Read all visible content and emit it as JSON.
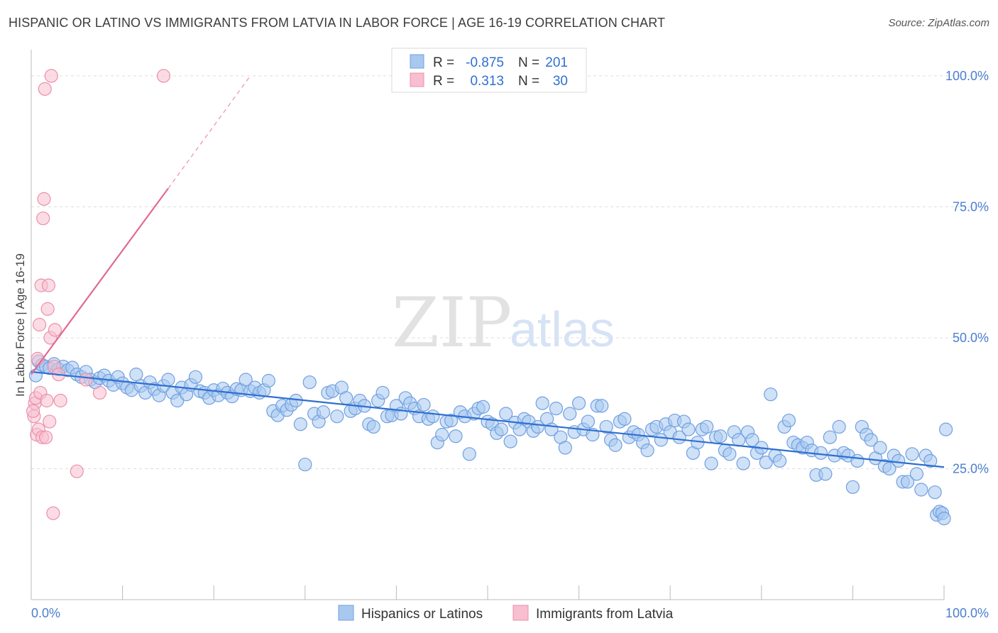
{
  "title": "HISPANIC OR LATINO VS IMMIGRANTS FROM LATVIA IN LABOR FORCE | AGE 16-19 CORRELATION CHART",
  "source": "Source: ZipAtlas.com",
  "watermark": {
    "zip": "ZIP",
    "atlas": "atlas"
  },
  "colors": {
    "blue_fill": "#a8c8f0",
    "blue_stroke": "#6f9fe0",
    "blue_line": "#2f6fd0",
    "pink_fill": "#f7bfd0",
    "pink_stroke": "#ec8fab",
    "pink_line": "#e06a95",
    "grid": "#dddddd",
    "axis_text": "#4a7fd0"
  },
  "stats": {
    "blue": {
      "r_label": "R =",
      "r_value": "-0.875",
      "n_label": "N =",
      "n_value": "201"
    },
    "pink": {
      "r_label": "R =",
      "r_value": "0.313",
      "n_label": "N =",
      "n_value": "30"
    }
  },
  "chart_data": {
    "type": "scatter",
    "xlabel": "",
    "ylabel": "In Labor Force | Age 16-19",
    "xlim": [
      0,
      100
    ],
    "ylim": [
      0,
      105
    ],
    "x_tick_labels": [
      "0.0%",
      "100.0%"
    ],
    "y_ticks": [
      {
        "value": 25,
        "label": "25.0%"
      },
      {
        "value": 50,
        "label": "50.0%"
      },
      {
        "value": 75,
        "label": "75.0%"
      },
      {
        "value": 100,
        "label": "100.0%"
      }
    ],
    "grid": "horizontal dashed",
    "legend_placement": "bottom",
    "series": [
      {
        "name": "Hispanics or Latinos",
        "color": "blue",
        "trend": {
          "x": [
            0,
            100
          ],
          "y": [
            43.5,
            25.3
          ]
        },
        "points": [
          [
            0.5,
            42.8
          ],
          [
            0.8,
            45.5
          ],
          [
            1.2,
            44.8
          ],
          [
            1.6,
            44.5
          ],
          [
            2.0,
            44.2
          ],
          [
            2.5,
            45.0
          ],
          [
            3.0,
            44.0
          ],
          [
            3.5,
            44.5
          ],
          [
            4.0,
            43.8
          ],
          [
            4.5,
            44.3
          ],
          [
            5.0,
            43.0
          ],
          [
            5.5,
            42.5
          ],
          [
            6.0,
            43.5
          ],
          [
            6.5,
            42.0
          ],
          [
            7.0,
            41.5
          ],
          [
            7.5,
            42.3
          ],
          [
            8.0,
            42.8
          ],
          [
            8.5,
            41.8
          ],
          [
            9.0,
            41.0
          ],
          [
            9.5,
            42.5
          ],
          [
            10.0,
            41.3
          ],
          [
            10.5,
            40.5
          ],
          [
            11.0,
            40.0
          ],
          [
            11.5,
            43.0
          ],
          [
            12.0,
            40.8
          ],
          [
            12.5,
            39.5
          ],
          [
            13.0,
            41.5
          ],
          [
            13.5,
            40.2
          ],
          [
            14.0,
            39.0
          ],
          [
            14.5,
            40.8
          ],
          [
            15.0,
            42.0
          ],
          [
            15.5,
            39.5
          ],
          [
            16.0,
            38.0
          ],
          [
            16.5,
            40.5
          ],
          [
            17.0,
            39.2
          ],
          [
            17.5,
            41.0
          ],
          [
            18.0,
            42.5
          ],
          [
            18.5,
            39.8
          ],
          [
            19.0,
            39.5
          ],
          [
            19.5,
            38.5
          ],
          [
            20.0,
            40.0
          ],
          [
            20.5,
            39.0
          ],
          [
            21.0,
            40.3
          ],
          [
            21.5,
            39.5
          ],
          [
            22.0,
            38.8
          ],
          [
            22.5,
            40.2
          ],
          [
            23.0,
            40.0
          ],
          [
            23.5,
            42.0
          ],
          [
            24.0,
            39.8
          ],
          [
            24.5,
            40.5
          ],
          [
            25.0,
            39.5
          ],
          [
            25.5,
            40.0
          ],
          [
            26.0,
            41.8
          ],
          [
            26.5,
            36.0
          ],
          [
            27.0,
            35.2
          ],
          [
            27.5,
            37.0
          ],
          [
            28.0,
            36.2
          ],
          [
            28.5,
            37.2
          ],
          [
            29.0,
            38.0
          ],
          [
            29.5,
            33.5
          ],
          [
            30.0,
            25.8
          ],
          [
            30.5,
            41.5
          ],
          [
            31.0,
            35.5
          ],
          [
            31.5,
            34.0
          ],
          [
            32.0,
            35.8
          ],
          [
            32.5,
            39.5
          ],
          [
            33.0,
            39.8
          ],
          [
            33.5,
            35.0
          ],
          [
            34.0,
            40.5
          ],
          [
            34.5,
            38.5
          ],
          [
            35.0,
            36.0
          ],
          [
            35.5,
            36.5
          ],
          [
            36.0,
            38.0
          ],
          [
            36.5,
            37.0
          ],
          [
            37.0,
            33.5
          ],
          [
            37.5,
            33.0
          ],
          [
            38.0,
            38.0
          ],
          [
            38.5,
            39.5
          ],
          [
            39.0,
            35.0
          ],
          [
            39.5,
            35.2
          ],
          [
            40.0,
            37.0
          ],
          [
            40.5,
            35.5
          ],
          [
            41.0,
            38.5
          ],
          [
            41.5,
            37.5
          ],
          [
            42.0,
            36.5
          ],
          [
            42.5,
            35.0
          ],
          [
            43.0,
            37.2
          ],
          [
            43.5,
            34.5
          ],
          [
            44.0,
            35.0
          ],
          [
            44.5,
            30.0
          ],
          [
            45.0,
            31.5
          ],
          [
            45.5,
            34.0
          ],
          [
            46.0,
            34.2
          ],
          [
            46.5,
            31.2
          ],
          [
            47.0,
            35.8
          ],
          [
            47.5,
            35.0
          ],
          [
            48.0,
            27.8
          ],
          [
            48.5,
            35.5
          ],
          [
            49.0,
            36.5
          ],
          [
            49.5,
            36.8
          ],
          [
            50.0,
            34.0
          ],
          [
            50.5,
            33.5
          ],
          [
            51.0,
            31.8
          ],
          [
            51.5,
            32.5
          ],
          [
            52.0,
            35.5
          ],
          [
            52.5,
            30.2
          ],
          [
            53.0,
            33.8
          ],
          [
            53.5,
            32.5
          ],
          [
            54.0,
            34.5
          ],
          [
            54.5,
            34.0
          ],
          [
            55.0,
            32.2
          ],
          [
            55.5,
            33.0
          ],
          [
            56.0,
            37.5
          ],
          [
            56.5,
            34.5
          ],
          [
            57.0,
            32.5
          ],
          [
            57.5,
            36.5
          ],
          [
            58.0,
            31.0
          ],
          [
            58.5,
            29.0
          ],
          [
            59.0,
            35.5
          ],
          [
            59.5,
            32.0
          ],
          [
            60.0,
            37.5
          ],
          [
            60.5,
            32.5
          ],
          [
            61.0,
            34.0
          ],
          [
            61.5,
            31.5
          ],
          [
            62.0,
            37.0
          ],
          [
            62.5,
            37.0
          ],
          [
            63.0,
            33.0
          ],
          [
            63.5,
            30.5
          ],
          [
            64.0,
            29.5
          ],
          [
            64.5,
            34.0
          ],
          [
            65.0,
            34.5
          ],
          [
            65.5,
            31.0
          ],
          [
            66.0,
            32.0
          ],
          [
            66.5,
            31.5
          ],
          [
            67.0,
            30.0
          ],
          [
            67.5,
            28.5
          ],
          [
            68.0,
            32.5
          ],
          [
            68.5,
            33.0
          ],
          [
            69.0,
            30.5
          ],
          [
            69.5,
            33.5
          ],
          [
            70.0,
            32.0
          ],
          [
            70.5,
            34.2
          ],
          [
            71.0,
            31.0
          ],
          [
            71.5,
            34.0
          ],
          [
            72.0,
            32.5
          ],
          [
            72.5,
            28.0
          ],
          [
            73.0,
            30.0
          ],
          [
            73.5,
            32.5
          ],
          [
            74.0,
            33.0
          ],
          [
            74.5,
            26.0
          ],
          [
            75.0,
            31.0
          ],
          [
            75.5,
            31.2
          ],
          [
            76.0,
            28.5
          ],
          [
            76.5,
            27.8
          ],
          [
            77.0,
            32.0
          ],
          [
            77.5,
            30.5
          ],
          [
            78.0,
            26.0
          ],
          [
            78.5,
            32.0
          ],
          [
            79.0,
            30.5
          ],
          [
            79.5,
            28.0
          ],
          [
            80.0,
            29.0
          ],
          [
            80.5,
            26.2
          ],
          [
            81.0,
            39.2
          ],
          [
            81.5,
            27.5
          ],
          [
            82.0,
            26.5
          ],
          [
            82.5,
            33.0
          ],
          [
            83.0,
            34.2
          ],
          [
            83.5,
            30.0
          ],
          [
            84.0,
            29.5
          ],
          [
            84.5,
            29.0
          ],
          [
            85.0,
            30.0
          ],
          [
            85.5,
            28.5
          ],
          [
            86.0,
            23.8
          ],
          [
            86.5,
            28.0
          ],
          [
            87.0,
            24.0
          ],
          [
            87.5,
            31.0
          ],
          [
            88.0,
            27.5
          ],
          [
            88.5,
            33.0
          ],
          [
            89.0,
            28.0
          ],
          [
            89.5,
            27.5
          ],
          [
            90.0,
            21.5
          ],
          [
            90.5,
            26.5
          ],
          [
            91.0,
            33.0
          ],
          [
            91.5,
            31.5
          ],
          [
            92.0,
            30.5
          ],
          [
            92.5,
            27.0
          ],
          [
            93.0,
            29.0
          ],
          [
            93.5,
            25.5
          ],
          [
            94.0,
            25.0
          ],
          [
            94.5,
            27.5
          ],
          [
            95.0,
            26.5
          ],
          [
            95.5,
            22.5
          ],
          [
            96.0,
            22.5
          ],
          [
            96.5,
            27.8
          ],
          [
            97.0,
            24.0
          ],
          [
            97.5,
            21.0
          ],
          [
            98.0,
            27.5
          ],
          [
            98.5,
            26.5
          ],
          [
            99.0,
            20.5
          ],
          [
            99.2,
            16.2
          ],
          [
            99.5,
            16.8
          ],
          [
            99.8,
            16.5
          ],
          [
            100.0,
            15.5
          ],
          [
            100.2,
            32.5
          ]
        ]
      },
      {
        "name": "Immigrants from Latvia",
        "color": "pink",
        "trend": {
          "x": [
            0,
            15
          ],
          "y": [
            43.0,
            78.5
          ],
          "dashed_extension": {
            "x": [
              15,
              24
            ],
            "y": [
              78.5,
              100
            ]
          }
        },
        "points": [
          [
            0.3,
            35.0
          ],
          [
            0.4,
            37.5
          ],
          [
            0.5,
            38.5
          ],
          [
            0.6,
            31.5
          ],
          [
            0.7,
            46.0
          ],
          [
            0.8,
            32.5
          ],
          [
            0.9,
            52.5
          ],
          [
            1.0,
            39.5
          ],
          [
            1.1,
            60.0
          ],
          [
            1.2,
            31.0
          ],
          [
            1.3,
            72.8
          ],
          [
            1.4,
            76.5
          ],
          [
            1.5,
            97.5
          ],
          [
            1.6,
            31.0
          ],
          [
            1.7,
            38.0
          ],
          [
            1.8,
            55.5
          ],
          [
            1.9,
            60.0
          ],
          [
            2.0,
            34.0
          ],
          [
            2.1,
            50.0
          ],
          [
            2.2,
            100.0
          ],
          [
            2.4,
            16.5
          ],
          [
            2.5,
            44.5
          ],
          [
            2.6,
            51.5
          ],
          [
            3.0,
            43.0
          ],
          [
            3.2,
            38.0
          ],
          [
            5.0,
            24.5
          ],
          [
            6.0,
            42.0
          ],
          [
            7.5,
            39.5
          ],
          [
            14.5,
            100.0
          ],
          [
            0.2,
            36.0
          ]
        ]
      }
    ]
  },
  "legend": {
    "items": [
      {
        "label": "Hispanics or Latinos",
        "color": "blue"
      },
      {
        "label": "Immigrants from Latvia",
        "color": "pink"
      }
    ]
  }
}
